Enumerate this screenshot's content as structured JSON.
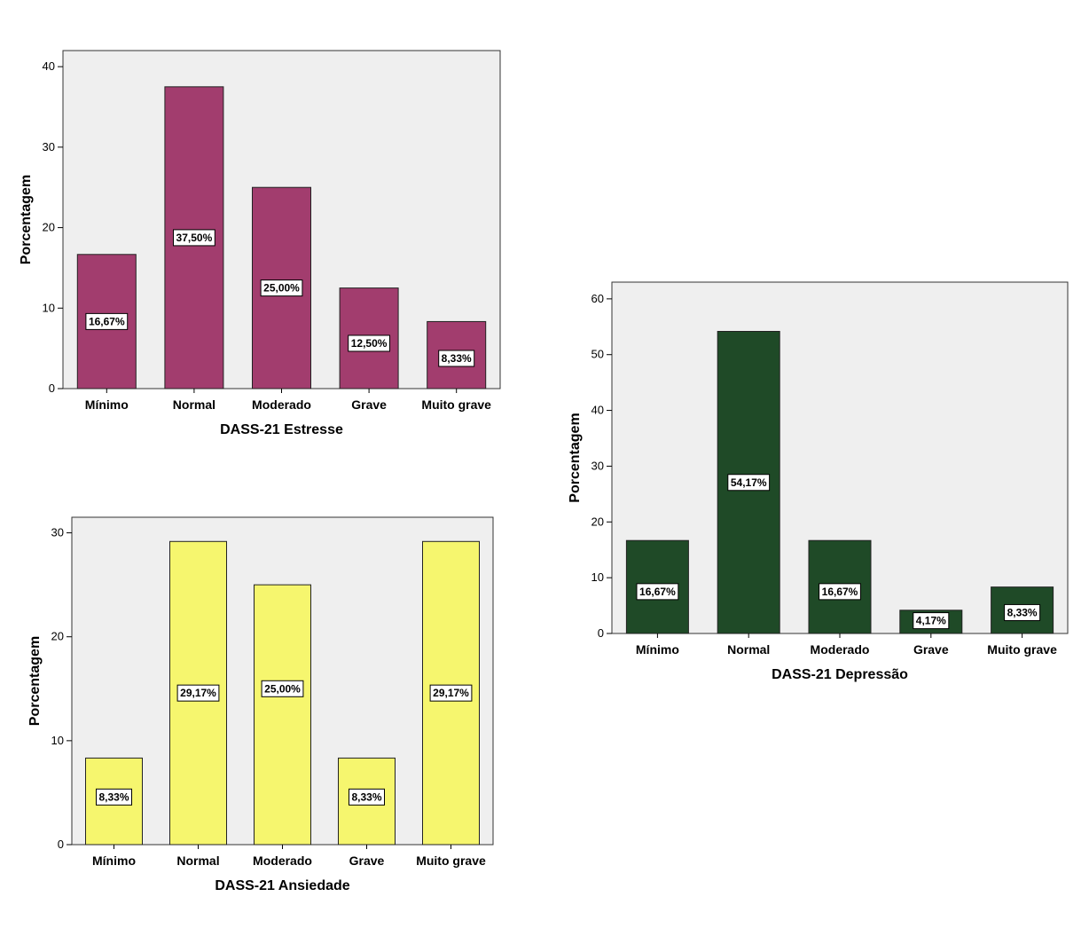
{
  "chart_data": [
    {
      "type": "bar",
      "xlabel": "DASS-21 Estresse",
      "ylabel": "Porcentagem",
      "categories": [
        "Mínimo",
        "Normal",
        "Moderado",
        "Grave",
        "Muito grave"
      ],
      "values": [
        16.67,
        37.5,
        25.0,
        12.5,
        8.33
      ],
      "data_labels": [
        "16,67%",
        "37,50%",
        "25,00%",
        "12,50%",
        "8,33%"
      ],
      "yticks": [
        0,
        10,
        20,
        30,
        40
      ],
      "ylim": [
        0,
        42
      ],
      "bar_color": "#a23d6e",
      "plot_background": "#efefef",
      "grid": false,
      "legend": "none"
    },
    {
      "type": "bar",
      "xlabel": "DASS-21 Ansiedade",
      "ylabel": "Porcentagem",
      "categories": [
        "Mínimo",
        "Normal",
        "Moderado",
        "Grave",
        "Muito grave"
      ],
      "values": [
        8.33,
        29.17,
        25.0,
        8.33,
        29.17
      ],
      "data_labels": [
        "8,33%",
        "29,17%",
        "25,00%",
        "8,33%",
        "29,17%"
      ],
      "yticks": [
        0,
        10,
        20,
        30
      ],
      "ylim": [
        0,
        31.5
      ],
      "bar_color": "#f6f66e",
      "plot_background": "#efefef",
      "grid": false,
      "legend": "none"
    },
    {
      "type": "bar",
      "xlabel": "DASS-21 Depressão",
      "ylabel": "Porcentagem",
      "categories": [
        "Mínimo",
        "Normal",
        "Moderado",
        "Grave",
        "Muito grave"
      ],
      "values": [
        16.67,
        54.17,
        16.67,
        4.17,
        8.33
      ],
      "data_labels": [
        "16,67%",
        "54,17%",
        "16,67%",
        "4,17%",
        "8,33%"
      ],
      "yticks": [
        0,
        10,
        20,
        30,
        40,
        50,
        60
      ],
      "ylim": [
        0,
        63
      ],
      "bar_color": "#1f4a27",
      "plot_background": "#efefef",
      "grid": false,
      "legend": "none"
    }
  ]
}
